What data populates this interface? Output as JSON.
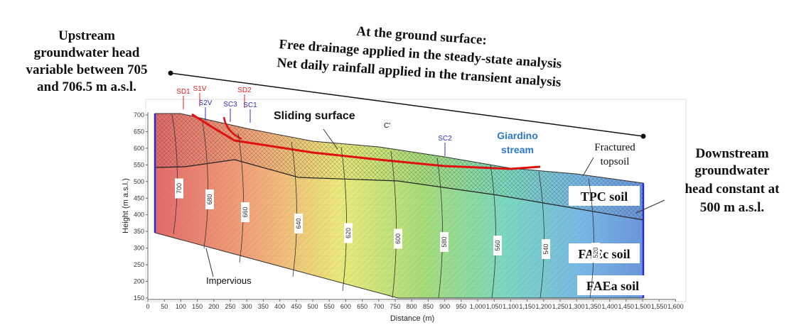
{
  "annotations": {
    "upstream": [
      "Upstream",
      "groundwater head",
      "variable between 705",
      "and 706.5 m a.s.l."
    ],
    "surface": [
      "At the ground surface:",
      "Free drainage applied in the steady-state analysis",
      "Net daily rainfall applied in the transient analysis"
    ],
    "downstream": [
      "Downstream",
      "groundwater",
      "head constant at",
      "500 m a.s.l."
    ]
  },
  "labels": {
    "sliding_surface": "Sliding surface",
    "giardino": [
      "Giardino",
      "stream"
    ],
    "fractured": [
      "Fractured",
      "topsoil"
    ],
    "impervious": "Impervious",
    "c_prime": "C'"
  },
  "soils": [
    "TPC soil",
    "FAEc soil",
    "FAEa soil"
  ],
  "boreholes": [
    {
      "label": "SD1",
      "color": "#e02020"
    },
    {
      "label": "S1V",
      "color": "#e02020"
    },
    {
      "label": "S2V",
      "color": "#3030c0"
    },
    {
      "label": "SC3",
      "color": "#3030c0"
    },
    {
      "label": "SD2",
      "color": "#e02020"
    },
    {
      "label": "SC1",
      "color": "#3030c0"
    },
    {
      "label": "SC2",
      "color": "#3030c0"
    }
  ],
  "contours": [
    "700",
    "680",
    "660",
    "640",
    "620",
    "600",
    "580",
    "560",
    "540",
    "520"
  ],
  "axes": {
    "x_title": "Distance (m)",
    "y_title": "Height (m a.s.l.)",
    "x_ticks": [
      "0",
      "50",
      "100",
      "150",
      "200",
      "250",
      "300",
      "350",
      "400",
      "450",
      "500",
      "550",
      "600",
      "650",
      "700",
      "750",
      "800",
      "850",
      "900",
      "950",
      "1,000",
      "1,050",
      "1,100",
      "1,150",
      "1,200",
      "1,250",
      "1,300",
      "1,350",
      "1,400",
      "1,450",
      "1,500",
      "1,550",
      "1,600"
    ],
    "y_ticks": [
      "700",
      "650",
      "600",
      "550",
      "500",
      "450",
      "400",
      "350",
      "300",
      "250",
      "200",
      "150"
    ]
  }
}
